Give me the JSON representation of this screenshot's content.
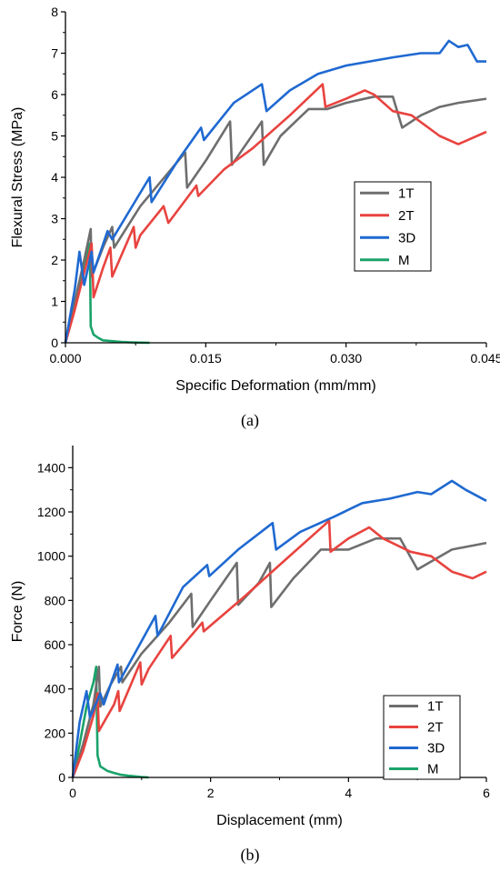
{
  "captions": {
    "a": "(a)",
    "b": "(b)"
  },
  "chart_data": [
    {
      "type": "line",
      "xlabel": "Specific Deformation (mm/mm)",
      "ylabel": "Flexural Stress (MPa)",
      "xlim": [
        0,
        0.045
      ],
      "ylim": [
        0,
        8
      ],
      "xticks": [
        "0.000",
        "0.015",
        "0.030",
        "0.045"
      ],
      "xtick_values": [
        0,
        0.015,
        0.03,
        0.045
      ],
      "yticks": [
        "0",
        "1",
        "2",
        "3",
        "4",
        "5",
        "6",
        "7",
        "8"
      ],
      "ytick_values": [
        0,
        1,
        2,
        3,
        4,
        5,
        6,
        7,
        8
      ],
      "legend_position": "center-right",
      "series": [
        {
          "name": "1T",
          "color": "#6e6e6e",
          "x": [
            0,
            0.001,
            0.002,
            0.0027,
            0.0028,
            0.004,
            0.005,
            0.0052,
            0.008,
            0.0128,
            0.013,
            0.015,
            0.0176,
            0.0178,
            0.019,
            0.021,
            0.0212,
            0.023,
            0.026,
            0.028,
            0.03,
            0.033,
            0.035,
            0.036,
            0.038,
            0.04,
            0.042,
            0.045
          ],
          "y": [
            0,
            1.0,
            2.0,
            2.75,
            1.6,
            2.3,
            2.8,
            2.3,
            3.3,
            4.6,
            3.75,
            4.4,
            5.35,
            4.3,
            4.7,
            5.35,
            4.3,
            5.0,
            5.65,
            5.65,
            5.8,
            5.95,
            5.95,
            5.2,
            5.5,
            5.7,
            5.8,
            5.9
          ]
        },
        {
          "name": "2T",
          "color": "#e8433f",
          "x": [
            0,
            0.001,
            0.002,
            0.0028,
            0.003,
            0.004,
            0.0048,
            0.005,
            0.0073,
            0.0075,
            0.008,
            0.0105,
            0.011,
            0.014,
            0.0142,
            0.017,
            0.02,
            0.024,
            0.0275,
            0.0278,
            0.03,
            0.032,
            0.033,
            0.035,
            0.037,
            0.04,
            0.042,
            0.045
          ],
          "y": [
            0,
            0.8,
            1.7,
            2.4,
            1.1,
            1.8,
            2.3,
            1.6,
            2.8,
            2.3,
            2.6,
            3.3,
            2.9,
            3.8,
            3.55,
            4.2,
            4.7,
            5.5,
            6.25,
            5.7,
            5.9,
            6.1,
            6.0,
            5.6,
            5.5,
            5.0,
            4.8,
            5.1
          ]
        },
        {
          "name": "3D",
          "color": "#1f69d1",
          "x": [
            0,
            0.001,
            0.0015,
            0.002,
            0.0028,
            0.003,
            0.0045,
            0.005,
            0.009,
            0.0092,
            0.012,
            0.0145,
            0.0148,
            0.018,
            0.021,
            0.0215,
            0.024,
            0.027,
            0.03,
            0.035,
            0.038,
            0.04,
            0.041,
            0.042,
            0.043,
            0.044,
            0.045
          ],
          "y": [
            0,
            1.3,
            2.2,
            1.4,
            2.2,
            1.7,
            2.7,
            2.5,
            4.0,
            3.4,
            4.4,
            5.2,
            4.9,
            5.8,
            6.25,
            5.6,
            6.1,
            6.5,
            6.7,
            6.9,
            7.0,
            7.0,
            7.3,
            7.15,
            7.2,
            6.8,
            6.8
          ]
        },
        {
          "name": "M",
          "color": "#1aa36a",
          "x": [
            0,
            0.001,
            0.002,
            0.0026,
            0.0027,
            0.003,
            0.0035,
            0.004,
            0.005,
            0.006,
            0.007,
            0.008,
            0.009
          ],
          "y": [
            0,
            0.9,
            1.9,
            2.4,
            0.4,
            0.2,
            0.12,
            0.06,
            0.04,
            0.02,
            0.01,
            0.005,
            0.0
          ]
        }
      ]
    },
    {
      "type": "line",
      "xlabel": "Displacement (mm)",
      "ylabel": "Force (N)",
      "xlim": [
        0,
        6
      ],
      "ylim": [
        0,
        1500
      ],
      "xticks": [
        "0",
        "2",
        "4",
        "6"
      ],
      "xtick_values": [
        0,
        2,
        4,
        6
      ],
      "yticks": [
        "0",
        "200",
        "400",
        "600",
        "800",
        "1000",
        "1200",
        "1400"
      ],
      "ytick_values": [
        0,
        200,
        400,
        600,
        800,
        1000,
        1200,
        1400
      ],
      "legend_position": "bottom-right",
      "series": [
        {
          "name": "1T",
          "color": "#6e6e6e",
          "x": [
            0,
            0.15,
            0.3,
            0.38,
            0.4,
            0.55,
            0.7,
            0.72,
            1.0,
            1.4,
            1.72,
            1.74,
            2.0,
            2.38,
            2.4,
            2.7,
            2.86,
            2.88,
            3.2,
            3.6,
            4.0,
            4.4,
            4.75,
            5.0,
            5.5,
            6.0
          ],
          "y": [
            0,
            150,
            330,
            500,
            320,
            420,
            500,
            430,
            560,
            700,
            830,
            680,
            800,
            970,
            780,
            880,
            970,
            770,
            900,
            1030,
            1030,
            1080,
            1080,
            940,
            1030,
            1060
          ]
        },
        {
          "name": "2T",
          "color": "#e8433f",
          "x": [
            0,
            0.15,
            0.3,
            0.36,
            0.38,
            0.6,
            0.66,
            0.68,
            0.98,
            1.0,
            1.1,
            1.42,
            1.44,
            1.88,
            1.9,
            2.5,
            3.0,
            3.72,
            3.74,
            4.0,
            4.3,
            4.5,
            4.9,
            5.2,
            5.5,
            5.8,
            6.0
          ],
          "y": [
            0,
            120,
            280,
            380,
            210,
            330,
            390,
            300,
            520,
            420,
            490,
            640,
            540,
            700,
            660,
            820,
            960,
            1160,
            1020,
            1080,
            1130,
            1080,
            1020,
            1000,
            930,
            900,
            930
          ]
        },
        {
          "name": "3D",
          "color": "#1f69d1",
          "x": [
            0,
            0.1,
            0.2,
            0.25,
            0.4,
            0.45,
            0.65,
            0.67,
            1.2,
            1.23,
            1.6,
            1.95,
            1.98,
            2.4,
            2.9,
            2.95,
            3.3,
            3.8,
            4.2,
            4.6,
            5.0,
            5.2,
            5.5,
            5.7,
            6.0
          ],
          "y": [
            0,
            250,
            390,
            270,
            380,
            330,
            510,
            430,
            730,
            640,
            860,
            960,
            910,
            1030,
            1150,
            1030,
            1110,
            1180,
            1240,
            1260,
            1290,
            1280,
            1340,
            1300,
            1250
          ]
        },
        {
          "name": "M",
          "color": "#1aa36a",
          "x": [
            0,
            0.1,
            0.2,
            0.3,
            0.34,
            0.36,
            0.4,
            0.5,
            0.6,
            0.7,
            0.8,
            0.9,
            1.0,
            1.1
          ],
          "y": [
            0,
            150,
            320,
            430,
            500,
            100,
            50,
            30,
            20,
            12,
            8,
            5,
            2,
            0
          ]
        }
      ]
    }
  ]
}
